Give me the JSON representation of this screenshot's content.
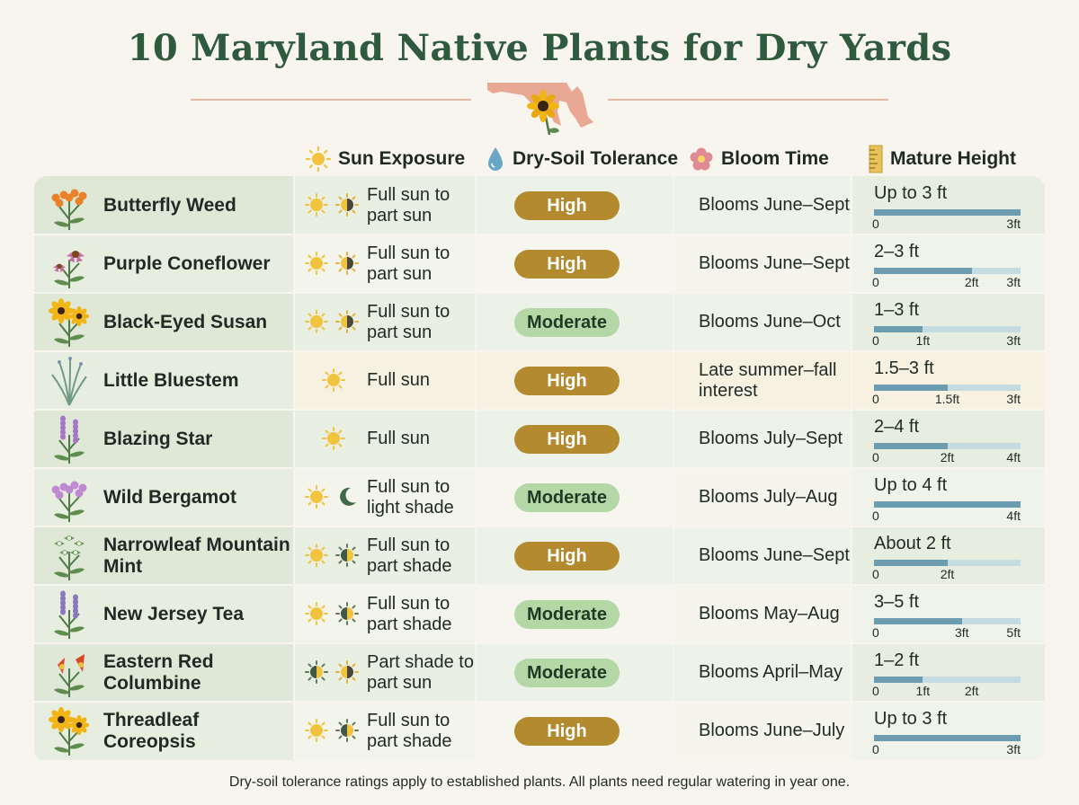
{
  "title": "10 Maryland Native Plants for Dry Yards",
  "headers": {
    "sun": "Sun Exposure",
    "dry": "Dry-Soil Tolerance",
    "bloom": "Bloom Time",
    "height": "Mature Height"
  },
  "colors": {
    "title": "#2f5a3e",
    "high_pill": "#b38b2e",
    "moderate_pill": "#b4d7a6",
    "height_bar": "#6c9cb0",
    "height_track": "#c5dbe2"
  },
  "plants": [
    {
      "name": "Butterfly Weed",
      "sun_icons": [
        "sun",
        "half-sun"
      ],
      "sun": "Full sun to part sun",
      "dry": "High",
      "bloom": "Blooms June–Sept",
      "height_label": "Up to 3 ft",
      "height_min": 0,
      "height_max": 3,
      "scale_max": 3,
      "ticks": [
        {
          "v": 0,
          "t": "0"
        },
        {
          "v": 3,
          "t": "3ft"
        }
      ],
      "flower": "#e9822a",
      "icon": "cluster"
    },
    {
      "name": "Purple Coneflower",
      "sun_icons": [
        "sun",
        "half-sun"
      ],
      "sun": "Full sun to part sun",
      "dry": "High",
      "bloom": "Blooms June–Sept",
      "height_label": "2–3 ft",
      "height_min": 0,
      "height_max": 2,
      "scale_max": 3,
      "ticks": [
        {
          "v": 0,
          "t": "0"
        },
        {
          "v": 2,
          "t": "2ft"
        },
        {
          "v": 3,
          "t": "3ft"
        }
      ],
      "flower": "#c56fa6",
      "icon": "cone"
    },
    {
      "name": "Black-Eyed Susan",
      "sun_icons": [
        "sun",
        "half-sun"
      ],
      "sun": "Full sun to part sun",
      "dry": "Moderate",
      "bloom": "Blooms June–Oct",
      "height_label": "1–3 ft",
      "height_min": 0,
      "height_max": 1,
      "scale_max": 3,
      "ticks": [
        {
          "v": 0,
          "t": "0"
        },
        {
          "v": 1,
          "t": "1ft"
        },
        {
          "v": 3,
          "t": "3ft"
        }
      ],
      "flower": "#f2b516",
      "icon": "daisy"
    },
    {
      "name": "Little Bluestem",
      "sun_icons": [
        "sun"
      ],
      "sun": "Full sun",
      "dry": "High",
      "bloom": "Late summer–fall interest",
      "height_label": "1.5–3 ft",
      "height_min": 0,
      "height_max": 1.5,
      "scale_max": 3,
      "ticks": [
        {
          "v": 0,
          "t": "0"
        },
        {
          "v": 1.5,
          "t": "1.5ft"
        },
        {
          "v": 3,
          "t": "3ft"
        }
      ],
      "flower": "#7c94b6",
      "icon": "grass"
    },
    {
      "name": "Blazing Star",
      "sun_icons": [
        "sun"
      ],
      "sun": "Full sun",
      "dry": "High",
      "bloom": "Blooms July–Sept",
      "height_label": "2–4 ft",
      "height_min": 0,
      "height_max": 2,
      "scale_max": 4,
      "ticks": [
        {
          "v": 0,
          "t": "0"
        },
        {
          "v": 2,
          "t": "2ft"
        },
        {
          "v": 4,
          "t": "4ft"
        }
      ],
      "flower": "#a777c7",
      "icon": "spike"
    },
    {
      "name": "Wild Bergamot",
      "sun_icons": [
        "sun",
        "moon"
      ],
      "sun": "Full sun to light shade",
      "dry": "Moderate",
      "bloom": "Blooms July–Aug",
      "height_label": "Up to 4 ft",
      "height_min": 0,
      "height_max": 4,
      "scale_max": 4,
      "ticks": [
        {
          "v": 0,
          "t": "0"
        },
        {
          "v": 4,
          "t": "4ft"
        }
      ],
      "flower": "#c08ad2",
      "icon": "cluster"
    },
    {
      "name": "Narrowleaf Mountain Mint",
      "sun_icons": [
        "sun",
        "part-shade"
      ],
      "sun": "Full sun to part shade",
      "dry": "High",
      "bloom": "Blooms June–Sept",
      "height_label": "About 2 ft",
      "height_min": 0,
      "height_max": 2,
      "scale_max": 4,
      "ticks": [
        {
          "v": 0,
          "t": "0"
        },
        {
          "v": 2,
          "t": "2ft"
        }
      ],
      "flower": "#e9efe4",
      "icon": "mint"
    },
    {
      "name": "New Jersey Tea",
      "sun_icons": [
        "sun",
        "part-shade"
      ],
      "sun": "Full sun to part shade",
      "dry": "Moderate",
      "bloom": "Blooms May–Aug",
      "height_label": "3–5 ft",
      "height_min": 0,
      "height_max": 3,
      "scale_max": 5,
      "ticks": [
        {
          "v": 0,
          "t": "0"
        },
        {
          "v": 3,
          "t": "3ft"
        },
        {
          "v": 5,
          "t": "5ft"
        }
      ],
      "flower": "#8a78be",
      "icon": "spike"
    },
    {
      "name": "Eastern Red Columbine",
      "sun_icons": [
        "part-shade",
        "half-sun"
      ],
      "sun": "Part shade to part sun",
      "dry": "Moderate",
      "bloom": "Blooms April–May",
      "height_label": "1–2 ft",
      "height_min": 0,
      "height_max": 1,
      "scale_max": 3,
      "ticks": [
        {
          "v": 0,
          "t": "0"
        },
        {
          "v": 1,
          "t": "1ft"
        },
        {
          "v": 2,
          "t": "2ft"
        }
      ],
      "flower": "#d9472b",
      "icon": "columbine"
    },
    {
      "name": "Threadleaf Coreopsis",
      "sun_icons": [
        "sun",
        "part-shade"
      ],
      "sun": "Full sun to part shade",
      "dry": "High",
      "bloom": "Blooms June–July",
      "height_label": "Up to 3 ft",
      "height_min": 0,
      "height_max": 3,
      "scale_max": 3,
      "ticks": [
        {
          "v": 0,
          "t": "0"
        },
        {
          "v": 3,
          "t": "3ft"
        }
      ],
      "flower": "#f2b516",
      "icon": "daisy"
    }
  ],
  "footnote": "Dry-soil tolerance ratings apply to established plants. All plants need regular watering in year one."
}
